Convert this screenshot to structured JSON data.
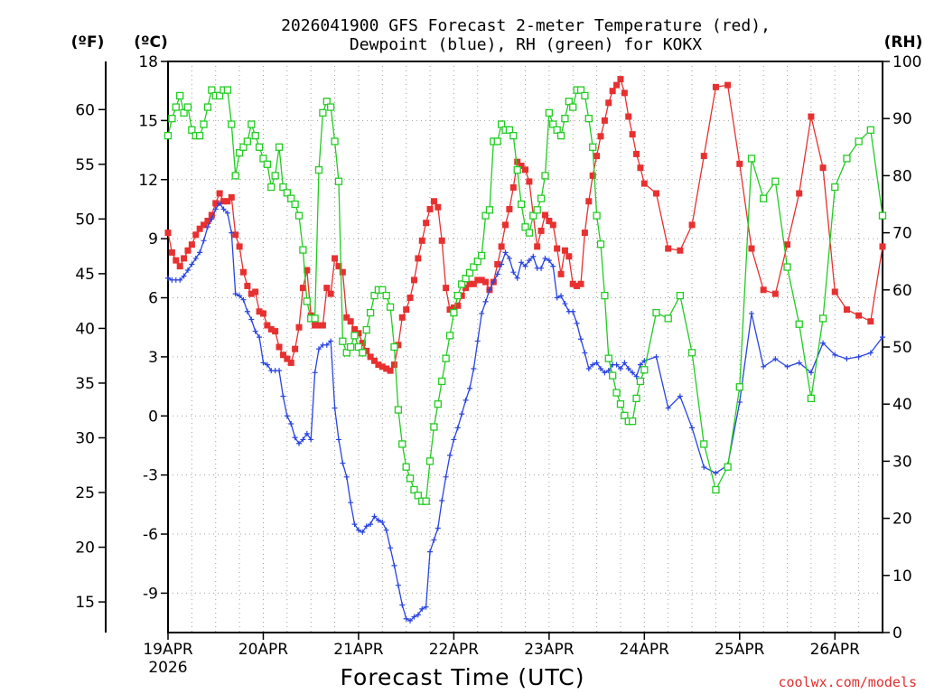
{
  "chart_data": {
    "type": "line",
    "title_lines": [
      "2026041900 GFS Forecast 2-meter Temperature (red),",
      "Dewpoint (blue), RH (green) for KOKX"
    ],
    "xlabel": "Forecast Time (UTC)",
    "credit": "coolwx.com/models",
    "units": {
      "fahrenheit": "(ºF)",
      "celsius": "(ºC)",
      "rh": "(RH)"
    },
    "x_range_hours": [
      0,
      180
    ],
    "x_ticks": [
      {
        "hour": 0,
        "label": "19APR",
        "sub": "2026"
      },
      {
        "hour": 24,
        "label": "20APR",
        "sub": ""
      },
      {
        "hour": 48,
        "label": "21APR",
        "sub": ""
      },
      {
        "hour": 72,
        "label": "22APR",
        "sub": ""
      },
      {
        "hour": 96,
        "label": "23APR",
        "sub": ""
      },
      {
        "hour": 120,
        "label": "24APR",
        "sub": ""
      },
      {
        "hour": 144,
        "label": "25APR",
        "sub": ""
      },
      {
        "hour": 168,
        "label": "26APR",
        "sub": ""
      }
    ],
    "celsius_axis": {
      "range": [
        -11,
        18
      ],
      "ticks": [
        "18",
        "15",
        "12",
        "9",
        "6",
        "3",
        "0",
        "-3",
        "-6",
        "-9"
      ]
    },
    "celsius_tick_values": [
      18,
      15,
      12,
      9,
      6,
      3,
      0,
      -3,
      -6,
      -9
    ],
    "fahrenheit_axis": {
      "ticks": [
        "60",
        "55",
        "50",
        "45",
        "40",
        "35",
        "30",
        "25",
        "20",
        "15"
      ]
    },
    "fahrenheit_tick_values": [
      60,
      55,
      50,
      45,
      40,
      35,
      30,
      25,
      20,
      15
    ],
    "rh_axis": {
      "range": [
        0,
        100
      ],
      "ticks": [
        "100",
        "90",
        "80",
        "70",
        "60",
        "50",
        "40",
        "30",
        "20",
        "10",
        "0"
      ]
    },
    "rh_tick_values": [
      100,
      90,
      80,
      70,
      60,
      50,
      40,
      30,
      20,
      10,
      0
    ],
    "series": [
      {
        "name": "Temperature",
        "unit": "C",
        "color": "#e83030",
        "marker": "filled-square",
        "x": [
          0,
          1,
          2,
          3,
          4,
          5,
          6,
          7,
          8,
          9,
          10,
          11,
          12,
          13,
          14,
          15,
          16,
          17,
          18,
          19,
          20,
          21,
          22,
          23,
          24,
          25,
          26,
          27,
          28,
          29,
          30,
          31,
          32,
          33,
          34,
          35,
          36,
          37,
          38,
          39,
          40,
          41,
          42,
          43,
          44,
          45,
          46,
          47,
          48,
          49,
          50,
          51,
          52,
          53,
          54,
          55,
          56,
          57,
          58,
          59,
          60,
          61,
          62,
          63,
          64,
          65,
          66,
          67,
          68,
          69,
          70,
          71,
          72,
          73,
          74,
          75,
          76,
          77,
          78,
          79,
          80,
          81,
          82,
          83,
          84,
          85,
          86,
          87,
          88,
          89,
          90,
          91,
          92,
          93,
          94,
          95,
          96,
          97,
          98,
          99,
          100,
          101,
          102,
          103,
          104,
          105,
          106,
          107,
          108,
          109,
          110,
          111,
          112,
          113,
          114,
          115,
          116,
          117,
          118,
          119,
          120,
          123,
          126,
          129,
          132,
          135,
          138,
          141,
          144,
          147,
          150,
          153,
          156,
          159,
          162,
          165,
          168,
          171,
          174,
          177,
          180
        ],
        "values": [
          9.3,
          8.3,
          7.9,
          7.6,
          8.0,
          8.4,
          8.7,
          9.2,
          9.5,
          9.7,
          9.9,
          10.2,
          10.8,
          11.3,
          10.9,
          10.9,
          11.1,
          9.2,
          8.6,
          7.3,
          6.6,
          6.2,
          6.3,
          5.3,
          5.2,
          4.6,
          4.4,
          4.3,
          3.5,
          3.1,
          2.9,
          2.7,
          3.4,
          4.5,
          6.5,
          7.4,
          5.1,
          4.6,
          4.6,
          4.6,
          6.5,
          6.2,
          8.0,
          7.6,
          7.3,
          5.0,
          4.8,
          4.4,
          4.2,
          3.7,
          3.3,
          3.0,
          2.8,
          2.6,
          2.5,
          2.4,
          2.3,
          2.6,
          3.6,
          5.0,
          5.4,
          6.0,
          6.9,
          8.0,
          8.9,
          9.8,
          10.5,
          10.9,
          10.6,
          8.9,
          6.5,
          5.4,
          5.5,
          5.6,
          6.1,
          6.5,
          6.7,
          6.7,
          6.9,
          6.9,
          6.8,
          6.4,
          6.8,
          7.7,
          8.6,
          9.7,
          10.5,
          11.6,
          12.9,
          12.7,
          12.5,
          11.9,
          10.2,
          8.6,
          9.4,
          10.2,
          9.9,
          9.7,
          8.5,
          7.2,
          8.4,
          8.1,
          6.7,
          6.6,
          6.7,
          9.3,
          10.9,
          12.2,
          13.2,
          14.2,
          15.0,
          15.9,
          16.5,
          16.8,
          17.1,
          16.4,
          15.2,
          14.3,
          13.3,
          12.6,
          11.8,
          11.3,
          8.5,
          8.4,
          9.7,
          13.2,
          16.7,
          16.8,
          12.8,
          8.5,
          6.4,
          6.2,
          8.7,
          11.3,
          15.2,
          12.6,
          6.3,
          5.4,
          5.1,
          4.8,
          8.6
        ]
      },
      {
        "name": "Dewpoint",
        "unit": "C",
        "color": "#2a44e0",
        "marker": "plus",
        "x": [
          0,
          1,
          2,
          3,
          4,
          5,
          6,
          7,
          8,
          9,
          10,
          11,
          12,
          13,
          14,
          15,
          16,
          17,
          18,
          19,
          20,
          21,
          22,
          23,
          24,
          25,
          26,
          27,
          28,
          29,
          30,
          31,
          32,
          33,
          34,
          35,
          36,
          37,
          38,
          39,
          40,
          41,
          42,
          43,
          44,
          45,
          46,
          47,
          48,
          49,
          50,
          51,
          52,
          53,
          54,
          55,
          56,
          57,
          58,
          59,
          60,
          61,
          62,
          63,
          64,
          65,
          66,
          67,
          68,
          69,
          70,
          71,
          72,
          73,
          74,
          75,
          76,
          77,
          78,
          79,
          80,
          81,
          82,
          83,
          84,
          85,
          86,
          87,
          88,
          89,
          90,
          91,
          92,
          93,
          94,
          95,
          96,
          97,
          98,
          99,
          100,
          101,
          102,
          103,
          104,
          105,
          106,
          107,
          108,
          109,
          110,
          111,
          112,
          113,
          114,
          115,
          116,
          117,
          118,
          119,
          120,
          123,
          126,
          129,
          132,
          135,
          138,
          141,
          144,
          147,
          150,
          153,
          156,
          159,
          162,
          165,
          168,
          171,
          174,
          177,
          180
        ],
        "values": [
          7.0,
          6.9,
          6.9,
          6.9,
          7.1,
          7.4,
          7.7,
          8.0,
          8.3,
          8.9,
          9.6,
          10.0,
          10.5,
          10.8,
          10.5,
          10.3,
          9.3,
          6.2,
          6.1,
          5.9,
          5.3,
          4.9,
          4.3,
          4.0,
          2.7,
          2.6,
          2.3,
          2.3,
          2.3,
          1.0,
          0.0,
          -0.4,
          -1.1,
          -1.4,
          -1.2,
          -0.9,
          -1.2,
          2.2,
          3.4,
          3.6,
          3.6,
          3.8,
          0.4,
          -1.2,
          -2.4,
          -3.1,
          -4.4,
          -5.5,
          -5.8,
          -5.9,
          -5.6,
          -5.5,
          -5.1,
          -5.3,
          -5.4,
          -5.8,
          -6.7,
          -7.6,
          -8.6,
          -9.6,
          -10.3,
          -10.4,
          -10.2,
          -10.1,
          -9.8,
          -9.7,
          -6.9,
          -6.3,
          -5.7,
          -4.3,
          -3.1,
          -2.0,
          -1.2,
          -0.6,
          0.1,
          0.8,
          1.4,
          2.4,
          3.8,
          5.2,
          5.8,
          6.4,
          6.8,
          7.2,
          7.7,
          8.3,
          8.0,
          7.3,
          7.0,
          7.8,
          7.6,
          7.9,
          8.1,
          7.5,
          7.5,
          8.0,
          7.9,
          7.6,
          6.0,
          6.1,
          5.7,
          5.3,
          5.3,
          4.7,
          3.9,
          3.2,
          2.4,
          2.6,
          2.7,
          2.4,
          2.2,
          2.3,
          2.6,
          2.6,
          2.4,
          2.7,
          2.4,
          2.2,
          2.0,
          2.6,
          2.8,
          3.0,
          0.4,
          1.0,
          -0.6,
          -2.6,
          -2.9,
          -2.5,
          0.7,
          5.2,
          2.5,
          2.9,
          2.5,
          2.7,
          2.2,
          3.7,
          3.1,
          2.9,
          3.0,
          3.2,
          4.0
        ]
      },
      {
        "name": "RH",
        "unit": "%",
        "color": "#22cc22",
        "marker": "open-square",
        "x": [
          0,
          1,
          2,
          3,
          4,
          5,
          6,
          7,
          8,
          9,
          10,
          11,
          12,
          13,
          14,
          15,
          16,
          17,
          18,
          19,
          20,
          21,
          22,
          23,
          24,
          25,
          26,
          27,
          28,
          29,
          30,
          31,
          32,
          33,
          34,
          35,
          36,
          37,
          38,
          39,
          40,
          41,
          42,
          43,
          44,
          45,
          46,
          47,
          48,
          49,
          50,
          51,
          52,
          53,
          54,
          55,
          56,
          57,
          58,
          59,
          60,
          61,
          62,
          63,
          64,
          65,
          66,
          67,
          68,
          69,
          70,
          71,
          72,
          73,
          74,
          75,
          76,
          77,
          78,
          79,
          80,
          81,
          82,
          83,
          84,
          85,
          86,
          87,
          88,
          89,
          90,
          91,
          92,
          93,
          94,
          95,
          96,
          97,
          98,
          99,
          100,
          101,
          102,
          103,
          104,
          105,
          106,
          107,
          108,
          109,
          110,
          111,
          112,
          113,
          114,
          115,
          116,
          117,
          118,
          119,
          120,
          123,
          126,
          129,
          132,
          135,
          138,
          141,
          144,
          147,
          150,
          153,
          156,
          159,
          162,
          165,
          168,
          171,
          174,
          177,
          180
        ],
        "values": [
          87,
          90,
          92,
          94,
          91,
          92,
          88,
          87,
          87,
          89,
          92,
          95,
          94,
          94,
          95,
          95,
          89,
          80,
          84,
          85,
          86,
          89,
          87,
          85,
          83,
          82,
          78,
          80,
          85,
          78,
          77,
          76,
          75,
          73,
          67,
          58,
          55,
          55,
          81,
          91,
          93,
          92,
          86,
          79,
          51,
          49,
          50,
          52,
          50,
          49,
          53,
          56,
          59,
          60,
          60,
          59,
          57,
          50,
          39,
          33,
          29,
          27,
          25,
          24,
          23,
          23,
          30,
          36,
          40,
          44,
          48,
          52,
          56,
          59,
          61,
          62,
          63,
          64,
          65,
          66,
          73,
          74,
          86,
          86,
          89,
          88,
          88,
          87,
          81,
          75,
          71,
          70,
          73,
          74,
          76,
          80,
          91,
          89,
          88,
          87,
          90,
          93,
          92,
          95,
          95,
          94,
          90,
          85,
          73,
          68,
          59,
          48,
          45,
          42,
          40,
          38,
          37,
          37,
          41,
          44,
          46,
          56,
          55,
          59,
          49,
          33,
          25,
          29,
          43,
          83,
          76,
          79,
          64,
          54,
          41,
          55,
          78,
          83,
          86,
          88,
          73
        ]
      }
    ]
  }
}
